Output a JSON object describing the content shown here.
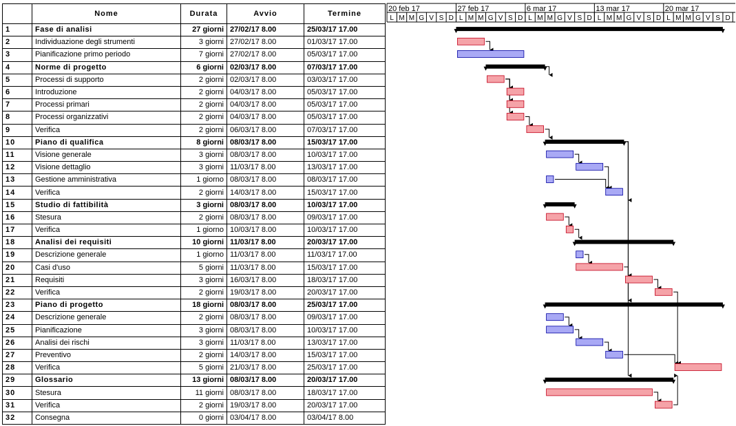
{
  "columns": {
    "id": "",
    "name": "Nome",
    "duration": "Durata",
    "start": "Avvio",
    "end": "Termine"
  },
  "timeline": {
    "weeks": [
      "20 feb 17",
      "27 feb 17",
      "6 mar 17",
      "13 mar 17",
      "20 mar 17"
    ],
    "day_letters": [
      "L",
      "M",
      "M",
      "G",
      "V",
      "S",
      "D"
    ]
  },
  "colors": {
    "task": "#f5a3a8",
    "task_border": "#c2001a",
    "subtask_alt": "#a9a9f5",
    "alt_border": "#0000a0",
    "summary": "#000000"
  },
  "tasks": [
    {
      "id": "1",
      "name": "Fase di analisi",
      "duration": "27 giorni",
      "start": "27/02/17 8.00",
      "end": "25/03/17 17.00",
      "kind": "summary"
    },
    {
      "id": "2",
      "name": "Individuazione degli strumenti",
      "duration": "3 giorni",
      "start": "27/02/17 8.00",
      "end": "01/03/17 17.00",
      "kind": "red"
    },
    {
      "id": "3",
      "name": "Pianificazione primo periodo",
      "duration": "7 giorni",
      "start": "27/02/17 8.00",
      "end": "05/03/17 17.00",
      "kind": "blue"
    },
    {
      "id": "4",
      "name": "Norme di progetto",
      "duration": "6 giorni",
      "start": "02/03/17 8.00",
      "end": "07/03/17 17.00",
      "kind": "summary"
    },
    {
      "id": "5",
      "name": "Processi di supporto",
      "duration": "2 giorni",
      "start": "02/03/17 8.00",
      "end": "03/03/17 17.00",
      "kind": "red"
    },
    {
      "id": "6",
      "name": "Introduzione",
      "duration": "2 giorni",
      "start": "04/03/17 8.00",
      "end": "05/03/17 17.00",
      "kind": "red"
    },
    {
      "id": "7",
      "name": "Processi primari",
      "duration": "2 giorni",
      "start": "04/03/17 8.00",
      "end": "05/03/17 17.00",
      "kind": "red"
    },
    {
      "id": "8",
      "name": "Processi organizzativi",
      "duration": "2 giorni",
      "start": "04/03/17 8.00",
      "end": "05/03/17 17.00",
      "kind": "red"
    },
    {
      "id": "9",
      "name": "Verifica",
      "duration": "2 giorni",
      "start": "06/03/17 8.00",
      "end": "07/03/17 17.00",
      "kind": "red"
    },
    {
      "id": "10",
      "name": "Piano di qualifica",
      "duration": "8 giorni",
      "start": "08/03/17 8.00",
      "end": "15/03/17 17.00",
      "kind": "summary"
    },
    {
      "id": "11",
      "name": "Visione generale",
      "duration": "3 giorni",
      "start": "08/03/17 8.00",
      "end": "10/03/17 17.00",
      "kind": "blue"
    },
    {
      "id": "12",
      "name": "Visione dettaglio",
      "duration": "3 giorni",
      "start": "11/03/17 8.00",
      "end": "13/03/17 17.00",
      "kind": "blue"
    },
    {
      "id": "13",
      "name": "Gestione amministrativa",
      "duration": "1 giorno",
      "start": "08/03/17 8.00",
      "end": "08/03/17 17.00",
      "kind": "blue"
    },
    {
      "id": "14",
      "name": "Verifica",
      "duration": "2 giorni",
      "start": "14/03/17 8.00",
      "end": "15/03/17 17.00",
      "kind": "blue"
    },
    {
      "id": "15",
      "name": "Studio di fattibilità",
      "duration": "3 giorni",
      "start": "08/03/17 8.00",
      "end": "10/03/17 17.00",
      "kind": "summary"
    },
    {
      "id": "16",
      "name": "Stesura",
      "duration": "2 giorni",
      "start": "08/03/17 8.00",
      "end": "09/03/17 17.00",
      "kind": "red"
    },
    {
      "id": "17",
      "name": "Verifica",
      "duration": "1 giorno",
      "start": "10/03/17 8.00",
      "end": "10/03/17 17.00",
      "kind": "red"
    },
    {
      "id": "18",
      "name": "Analisi dei requisiti",
      "duration": "10 giorni",
      "start": "11/03/17 8.00",
      "end": "20/03/17 17.00",
      "kind": "summary"
    },
    {
      "id": "19",
      "name": "Descrizione generale",
      "duration": "1 giorno",
      "start": "11/03/17 8.00",
      "end": "11/03/17 17.00",
      "kind": "blue"
    },
    {
      "id": "20",
      "name": "Casi d'uso",
      "duration": "5 giorni",
      "start": "11/03/17 8.00",
      "end": "15/03/17 17.00",
      "kind": "red"
    },
    {
      "id": "21",
      "name": "Requisiti",
      "duration": "3 giorni",
      "start": "16/03/17 8.00",
      "end": "18/03/17 17.00",
      "kind": "red"
    },
    {
      "id": "22",
      "name": "Verifica",
      "duration": "2 giorni",
      "start": "19/03/17 8.00",
      "end": "20/03/17 17.00",
      "kind": "red"
    },
    {
      "id": "23",
      "name": "Piano di progetto",
      "duration": "18 giorni",
      "start": "08/03/17 8.00",
      "end": "25/03/17 17.00",
      "kind": "summary"
    },
    {
      "id": "24",
      "name": "Descrizione generale",
      "duration": "2 giorni",
      "start": "08/03/17 8.00",
      "end": "09/03/17 17.00",
      "kind": "blue"
    },
    {
      "id": "25",
      "name": "Pianificazione",
      "duration": "3 giorni",
      "start": "08/03/17 8.00",
      "end": "10/03/17 17.00",
      "kind": "blue"
    },
    {
      "id": "26",
      "name": "Analisi dei rischi",
      "duration": "3 giorni",
      "start": "11/03/17 8.00",
      "end": "13/03/17 17.00",
      "kind": "blue"
    },
    {
      "id": "27",
      "name": "Preventivo",
      "duration": "2 giorni",
      "start": "14/03/17 8.00",
      "end": "15/03/17 17.00",
      "kind": "blue"
    },
    {
      "id": "28",
      "name": "Verifica",
      "duration": "5 giorni",
      "start": "21/03/17 8.00",
      "end": "25/03/17 17.00",
      "kind": "red"
    },
    {
      "id": "29",
      "name": "Glossario",
      "duration": "13 giorni",
      "start": "08/03/17 8.00",
      "end": "20/03/17 17.00",
      "kind": "summary"
    },
    {
      "id": "30",
      "name": "Stesura",
      "duration": "11 giorni",
      "start": "08/03/17 8.00",
      "end": "18/03/17 17.00",
      "kind": "red"
    },
    {
      "id": "31",
      "name": "Verifica",
      "duration": "2 giorni",
      "start": "19/03/17 8.00",
      "end": "20/03/17 17.00",
      "kind": "red"
    },
    {
      "id": "32",
      "name": "Consegna",
      "duration": "0 giorni",
      "start": "03/04/17 8.00",
      "end": "03/04/17 8.00",
      "kind": "milestone"
    }
  ],
  "dependencies": [
    [
      2,
      3
    ],
    [
      4,
      5
    ],
    [
      5,
      6
    ],
    [
      5,
      7
    ],
    [
      5,
      8
    ],
    [
      8,
      9
    ],
    [
      9,
      10
    ],
    [
      11,
      12
    ],
    [
      13,
      14
    ],
    [
      12,
      14
    ],
    [
      10,
      15
    ],
    [
      16,
      17
    ],
    [
      17,
      18
    ],
    [
      19,
      20
    ],
    [
      20,
      21
    ],
    [
      21,
      22
    ],
    [
      10,
      23
    ],
    [
      24,
      25
    ],
    [
      25,
      26
    ],
    [
      26,
      27
    ],
    [
      27,
      28
    ],
    [
      22,
      28
    ],
    [
      10,
      29
    ],
    [
      30,
      31
    ],
    [
      31,
      29
    ]
  ]
}
